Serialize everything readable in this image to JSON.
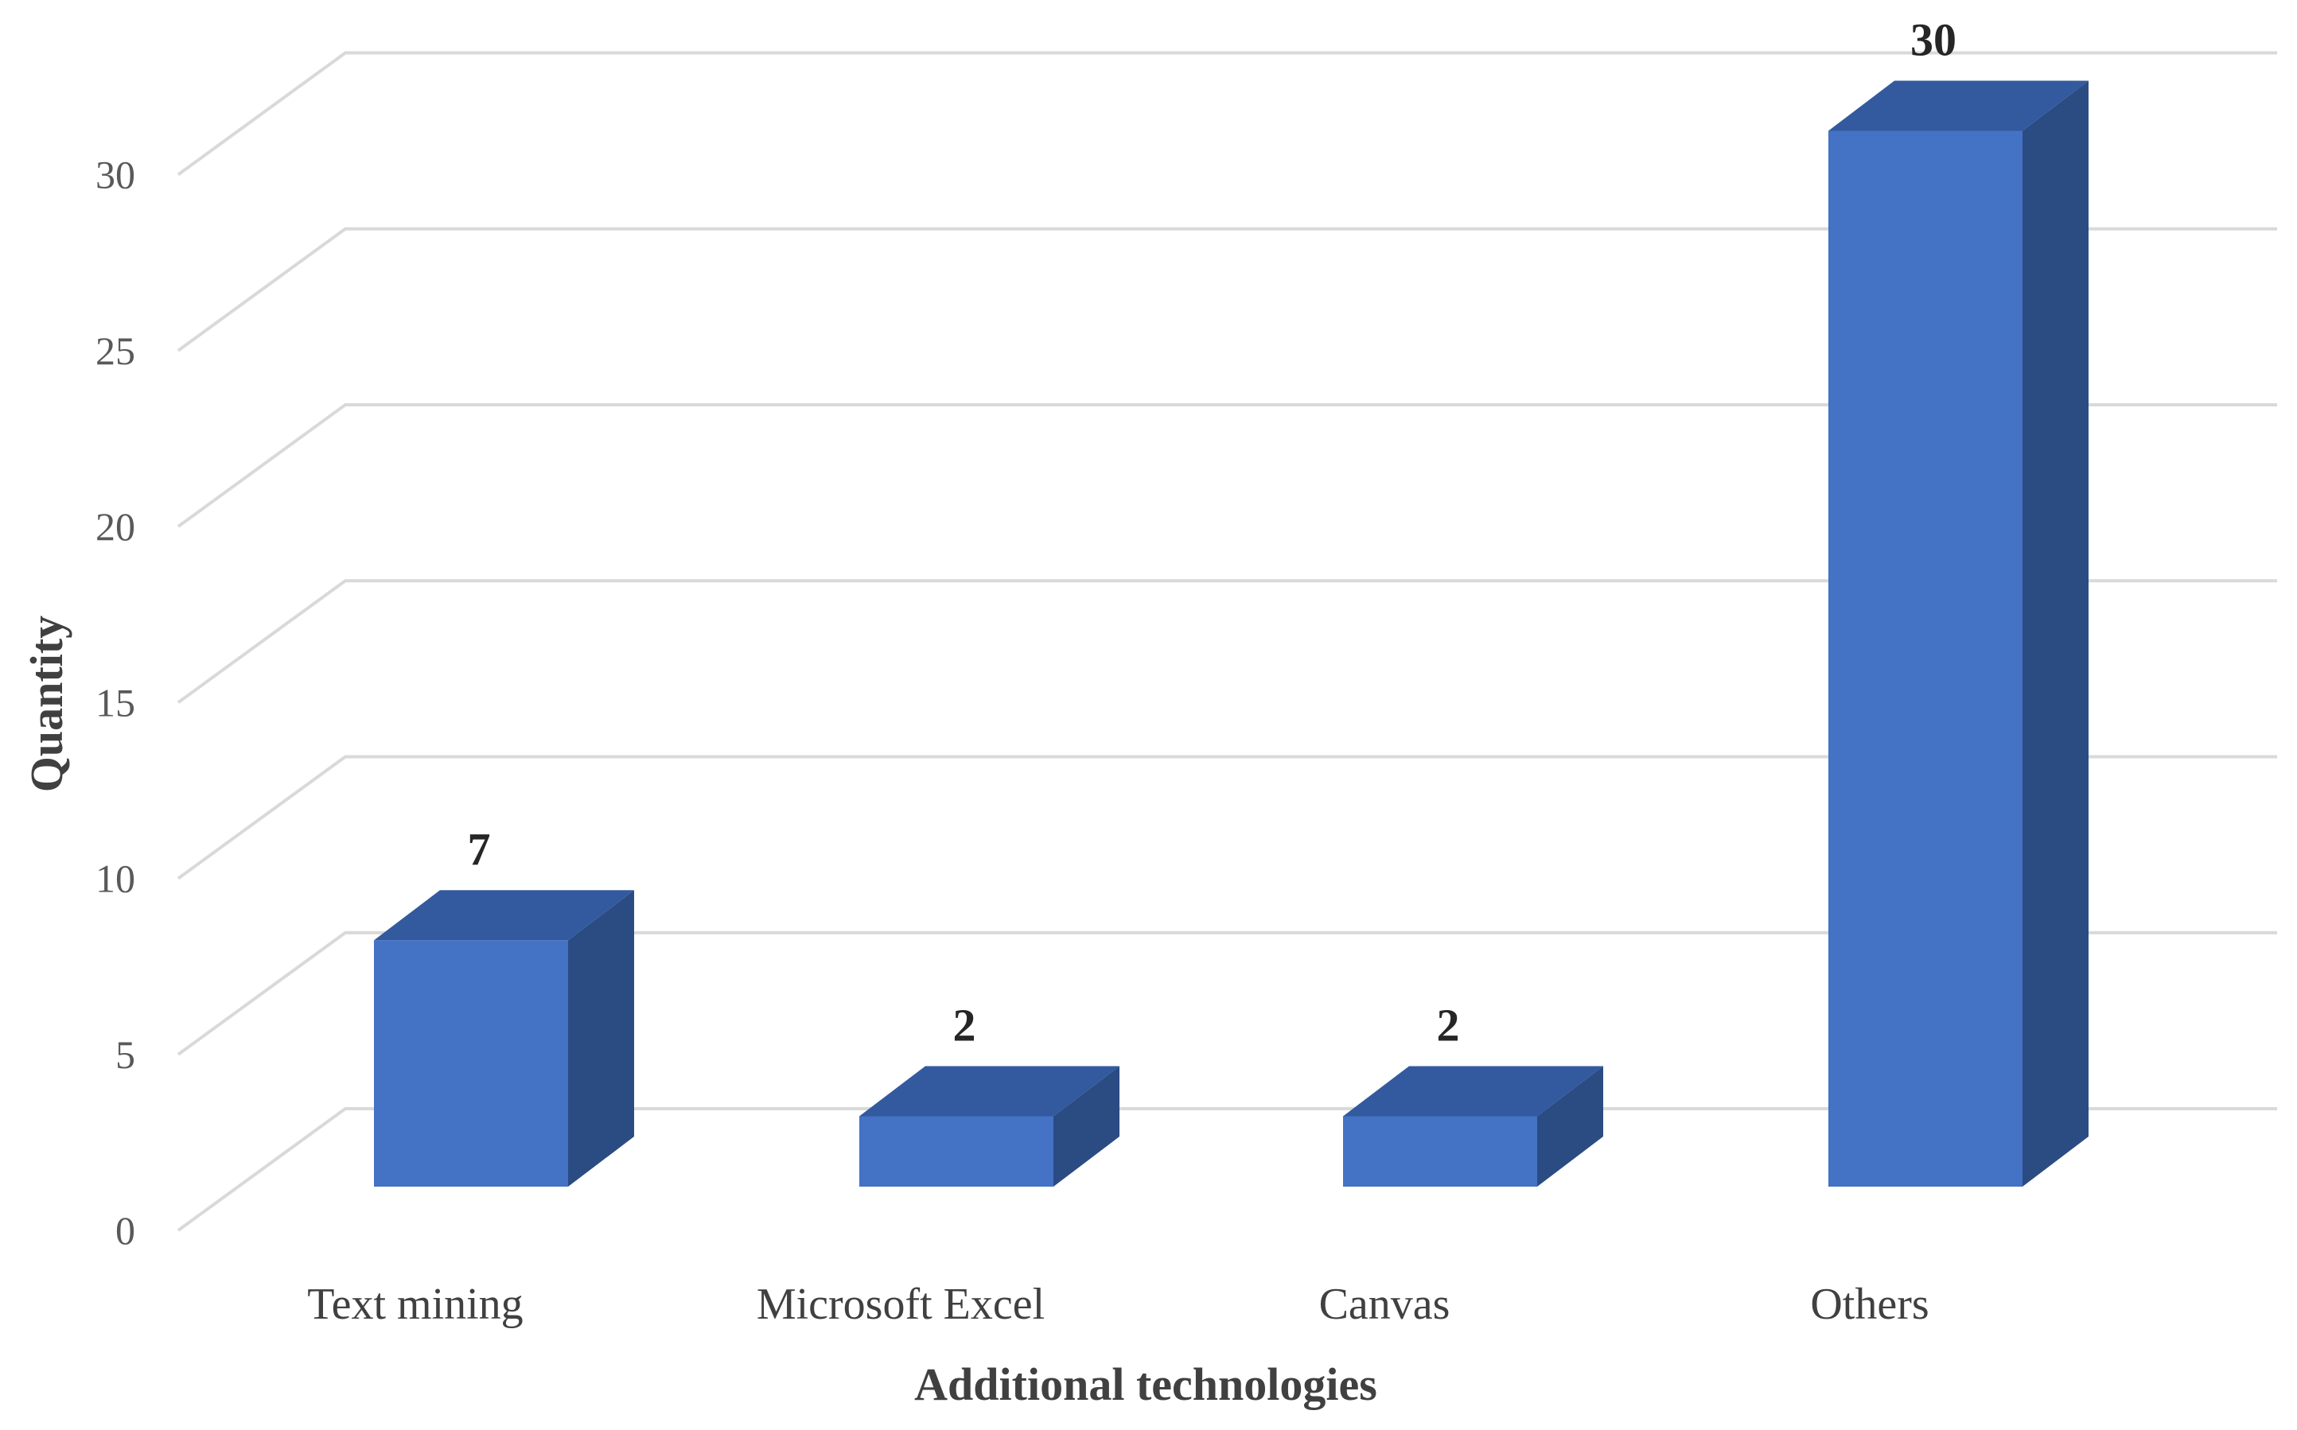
{
  "chart_data": {
    "type": "bar",
    "style": "3d-column",
    "categories": [
      "Text mining",
      "Microsoft Excel",
      "Canvas",
      "Others"
    ],
    "values": [
      7,
      2,
      2,
      30
    ],
    "xlabel": "Additional technologies",
    "ylabel": "Quantity",
    "ylim": [
      0,
      30
    ],
    "yticks": [
      0,
      5,
      10,
      15,
      20,
      25,
      30
    ],
    "ytick_labels": [
      "0",
      "5",
      "10",
      "15",
      "20",
      "25",
      "30"
    ],
    "data_labels": [
      "7",
      "2",
      "2",
      "30"
    ],
    "grid": true,
    "legend": "none",
    "colors": {
      "bar_front": "#4472c4",
      "bar_side": "#2b4b83",
      "bar_top": "#335a9e",
      "gridline": "#d9d9d9"
    }
  }
}
